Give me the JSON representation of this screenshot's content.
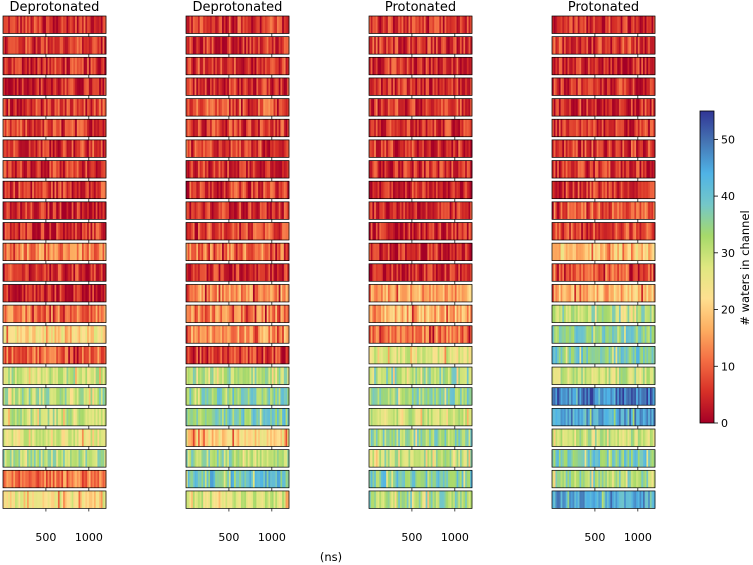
{
  "chart_data": {
    "type": "heatmap",
    "xlabel": "(ns)",
    "x_ticks": [
      500,
      1000
    ],
    "xlim": [
      0,
      1200
    ],
    "rows_per_panel": 24,
    "panels": [
      {
        "title": "Deprotonated",
        "row_levels": [
          6,
          7,
          6,
          5,
          7,
          7,
          7,
          6,
          7,
          5,
          6,
          13,
          6,
          5,
          12,
          22,
          11,
          30,
          32,
          30,
          26,
          32,
          12,
          24
        ]
      },
      {
        "title": "Deprotonated",
        "row_levels": [
          7,
          6,
          7,
          6,
          9,
          7,
          7,
          6,
          7,
          6,
          8,
          12,
          6,
          14,
          13,
          15,
          7,
          32,
          36,
          37,
          21,
          33,
          40,
          28
        ]
      },
      {
        "title": "Protonated",
        "row_levels": [
          6,
          7,
          6,
          6,
          7,
          6,
          7,
          6,
          6,
          5,
          5,
          5,
          5,
          16,
          17,
          12,
          26,
          33,
          35,
          29,
          34,
          31,
          38,
          33
        ]
      },
      {
        "title": "Protonated",
        "row_levels": [
          6,
          7,
          5,
          6,
          6,
          6,
          7,
          6,
          7,
          9,
          8,
          20,
          10,
          18,
          32,
          36,
          38,
          30,
          49,
          45,
          30,
          38,
          34,
          45
        ]
      }
    ],
    "colorbar": {
      "label": "# waters in channel",
      "range": [
        0,
        55
      ],
      "ticks": [
        0,
        10,
        20,
        30,
        40,
        50
      ],
      "colormap": "RdYlBu (reversed)"
    }
  }
}
